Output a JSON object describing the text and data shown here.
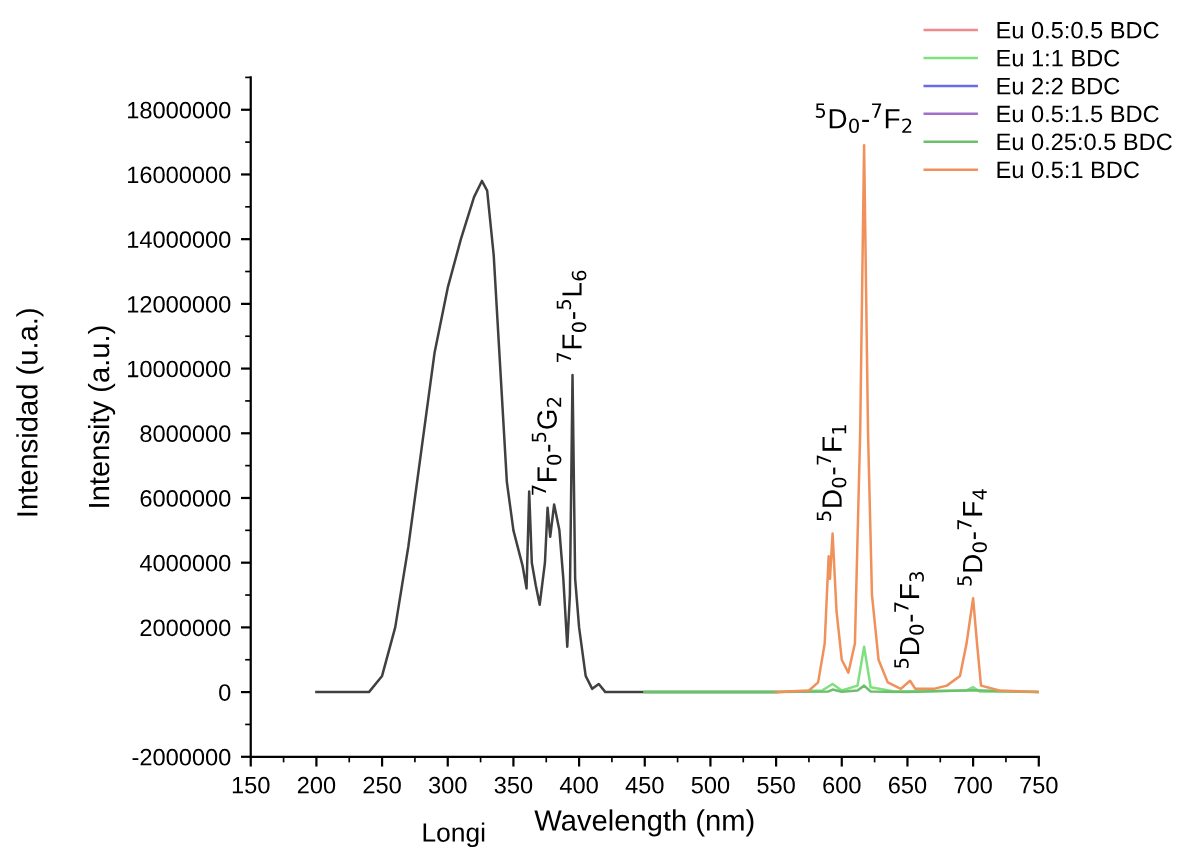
{
  "chart_data": {
    "type": "line",
    "xlabel": "Wavelength (nm)",
    "ylabel": "Intensity (a.u.)",
    "xlim": [
      150,
      750
    ],
    "xticks": [
      150,
      200,
      250,
      300,
      350,
      400,
      450,
      500,
      550,
      600,
      650,
      700,
      750
    ],
    "ylim": [
      -2000000,
      19000000
    ],
    "yticks": [
      -2000000,
      0,
      2000000,
      4000000,
      6000000,
      8000000,
      10000000,
      12000000,
      14000000,
      16000000,
      18000000
    ],
    "grid": false,
    "legend": "top right",
    "line_style": "solid",
    "marker": "none",
    "series": [
      {
        "color": "#404040",
        "x": [
          200,
          240,
          250,
          260,
          270,
          280,
          290,
          300,
          310,
          320,
          326,
          330,
          335,
          340,
          345,
          350,
          357,
          360,
          362,
          364,
          367,
          370,
          374,
          376,
          378,
          381,
          385,
          388,
          391,
          393,
          395,
          397,
          400,
          405,
          410,
          415,
          420,
          500,
          550
        ],
        "values": [
          0,
          0,
          500000,
          2000000,
          4500000,
          7500000,
          10500000,
          12500000,
          14000000,
          15300000,
          15800000,
          15500000,
          13500000,
          10000000,
          6500000,
          5000000,
          3900000,
          3200000,
          6200000,
          4000000,
          3300000,
          2700000,
          4000000,
          5700000,
          4800000,
          5800000,
          5000000,
          3500000,
          1400000,
          3000000,
          9800000,
          3500000,
          2000000,
          500000,
          100000,
          250000,
          0,
          0,
          0
        ]
      },
      {
        "name": "Eu 0.5:0.5 BDC",
        "color": "#f08a8a"
      },
      {
        "name": "Eu 1:1 BDC",
        "color": "#7ee07e",
        "x": [
          450,
          550,
          585,
          593,
          600,
          612,
          617,
          622,
          640,
          695,
          700,
          705,
          750
        ],
        "values": [
          0,
          0,
          50000,
          250000,
          50000,
          200000,
          1400000,
          150000,
          20000,
          50000,
          150000,
          20000,
          0
        ]
      },
      {
        "name": "Eu 2:2 BDC",
        "color": "#6a6ae6"
      },
      {
        "name": "Eu 0.5:1.5 BDC",
        "color": "#a070c8"
      },
      {
        "name": "Eu 0.25:0.5 BDC",
        "color": "#6cc06c",
        "x": [
          450,
          550,
          590,
          593,
          600,
          612,
          617,
          622,
          650,
          700,
          750
        ],
        "values": [
          0,
          0,
          20000,
          80000,
          10000,
          50000,
          200000,
          20000,
          0,
          60000,
          0
        ]
      },
      {
        "name": "Eu 0.5:1 BDC",
        "color": "#f0905a",
        "x": [
          550,
          575,
          582,
          587,
          590,
          591,
          593,
          596,
          600,
          605,
          610,
          614,
          617,
          620,
          623,
          628,
          635,
          645,
          652,
          656,
          670,
          680,
          690,
          695,
          700,
          703,
          706,
          720,
          750
        ],
        "values": [
          0,
          50000,
          300000,
          1500000,
          4200000,
          3500000,
          4900000,
          2500000,
          1000000,
          600000,
          1500000,
          8000000,
          16900000,
          8000000,
          3000000,
          1000000,
          300000,
          100000,
          350000,
          100000,
          100000,
          200000,
          500000,
          1500000,
          2900000,
          1500000,
          200000,
          50000,
          0
        ]
      }
    ],
    "annotations": [
      {
        "text": "$^{7}$F$_{0}$-$^{5}$G$_{2}$",
        "x": 376,
        "y": 5700000
      },
      {
        "text": "$^{7}$F$_{0}$-$^{5}$L$_{6}$",
        "x": 395,
        "y": 9800000
      },
      {
        "text": "$^{5}$D$_{0}$-$^{7}$F$_{2}$",
        "x": 617,
        "y": 16900000
      },
      {
        "text": "$^{5}$D$_{0}$-$^{7}$F$_{1}$",
        "x": 593,
        "y": 4900000
      },
      {
        "text": "$^{5}$D$_{0}$-$^{7}$F$_{3}$",
        "x": 652,
        "y": 350000
      },
      {
        "text": "$^{5}$D$_{0}$-$^{7}$F$_{4}$",
        "x": 700,
        "y": 2900000
      },
      "Intensidad (u.a.)",
      "Longi"
    ]
  }
}
